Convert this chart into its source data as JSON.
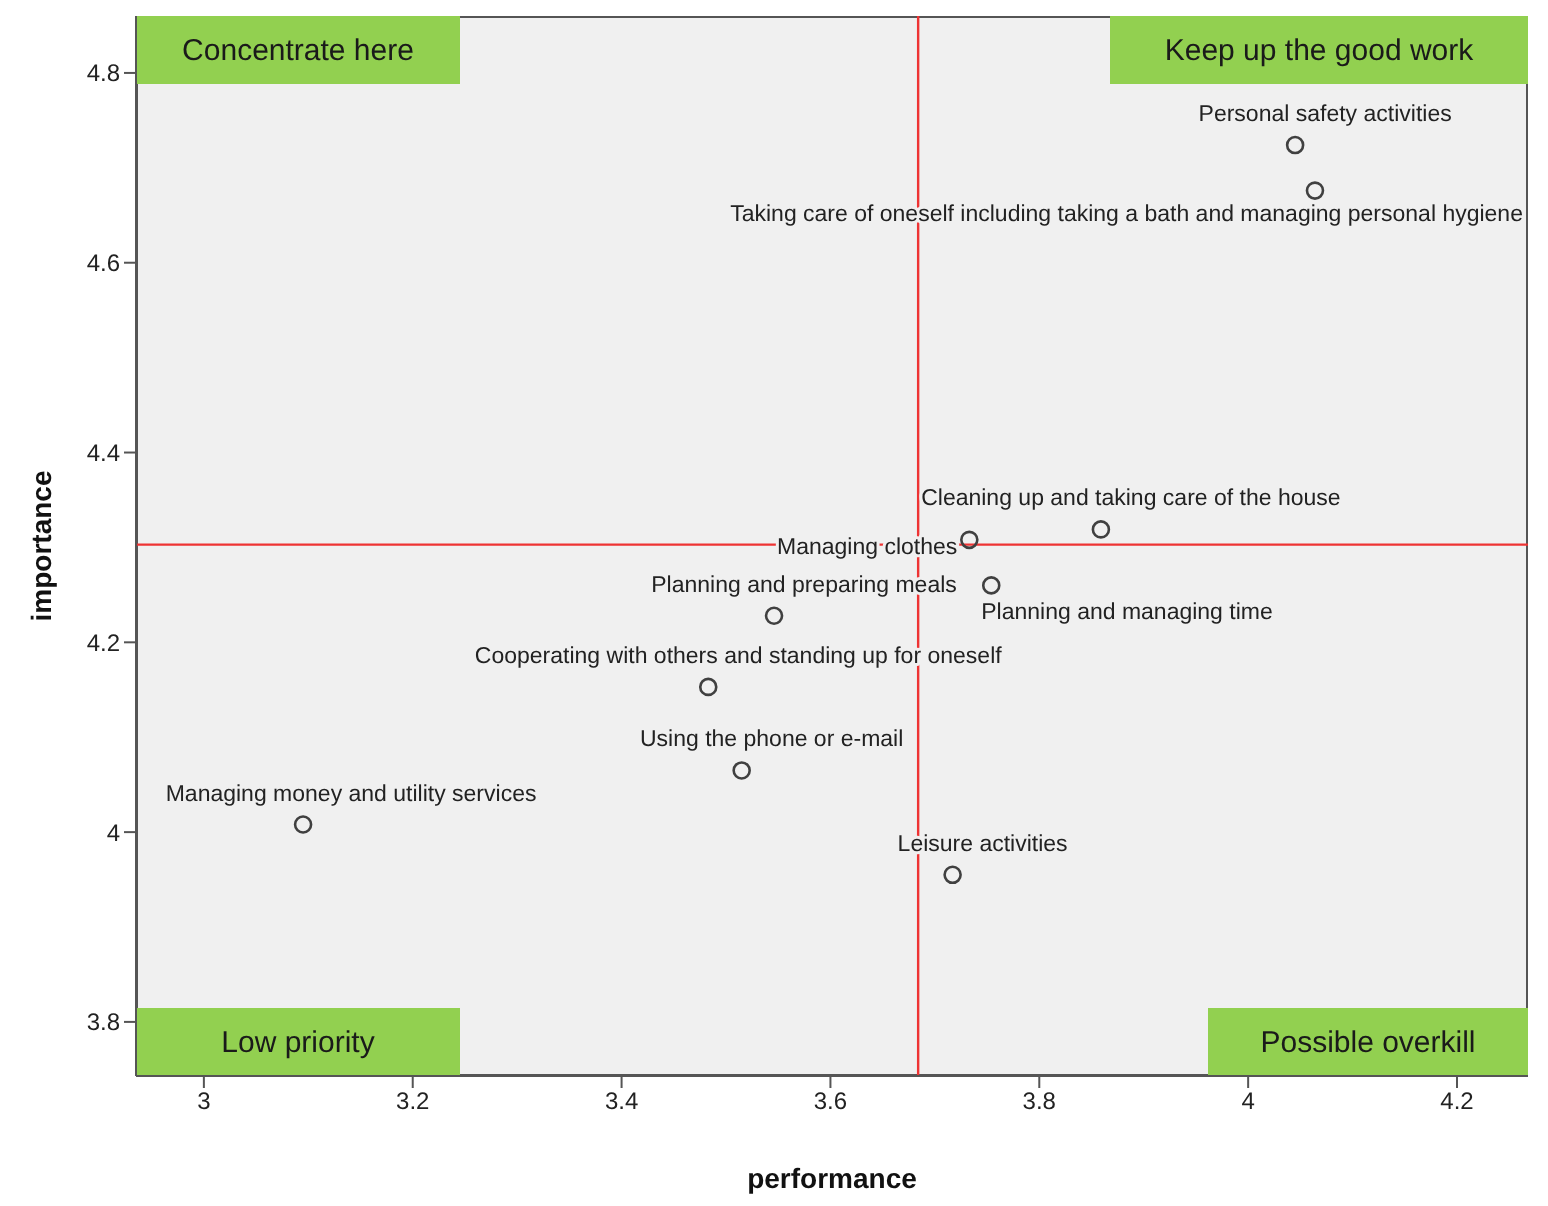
{
  "chart_data": {
    "type": "scatter",
    "xlabel": "performance",
    "ylabel": "importance",
    "x": [
      4.045,
      4.064,
      3.859,
      3.733,
      3.754,
      3.546,
      3.483,
      3.515,
      3.717,
      3.095
    ],
    "values": [
      4.724,
      4.676,
      4.319,
      4.308,
      4.26,
      4.228,
      4.153,
      4.065,
      3.955,
      4.008
    ],
    "color": "#404040",
    "marker": "circle",
    "xlim": [
      2.935,
      4.268
    ],
    "xticks": [
      3,
      3.2,
      3.4,
      3.6,
      3.8,
      4,
      4.2
    ],
    "ylim": [
      3.743,
      4.86
    ],
    "yticks": [
      3.8,
      4,
      4.2,
      4.4,
      4.6,
      4.8
    ],
    "grid": false,
    "ref_lines": [
      {
        "axis": "x",
        "value": 3.684,
        "color": "#ee3333"
      },
      {
        "axis": "y",
        "value": 4.303,
        "color": "#ee3333"
      }
    ],
    "annotations": [
      "Concentrate here",
      "Keep up the good work",
      "Low priority",
      "Possible overkill",
      {
        "text": "Personal safety activities",
        "x": 4.045,
        "y": 4.724
      },
      {
        "text": "Taking care of oneself including taking a bath and managing personal hygiene",
        "x": 4.064,
        "y": 4.676
      },
      {
        "text": "Cleaning up and taking care of the house",
        "x": 3.859,
        "y": 4.319
      },
      {
        "text": "Managing clothes",
        "x": 3.733,
        "y": 4.308
      },
      {
        "text": "Planning and managing time",
        "x": 3.754,
        "y": 4.26
      },
      {
        "text": "Planning and preparing meals",
        "x": 3.546,
        "y": 4.228
      },
      {
        "text": "Cooperating with others and standing up for oneself",
        "x": 3.483,
        "y": 4.153
      },
      {
        "text": "Using the phone or e-mail",
        "x": 3.515,
        "y": 4.065
      },
      {
        "text": "Leisure activities",
        "x": 3.717,
        "y": 3.955
      },
      {
        "text": "Managing money and utility services",
        "x": 3.095,
        "y": 4.008
      }
    ]
  }
}
